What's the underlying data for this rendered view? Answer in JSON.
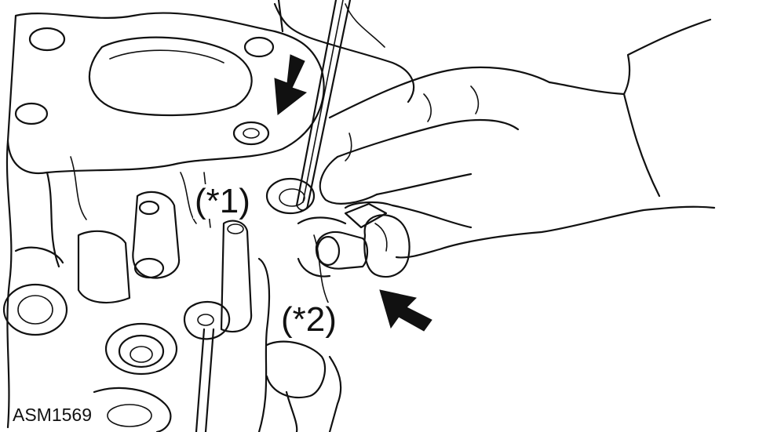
{
  "figure": {
    "id": "ASM1569",
    "callouts": {
      "first": "(*1)",
      "second": "(*2)"
    }
  }
}
